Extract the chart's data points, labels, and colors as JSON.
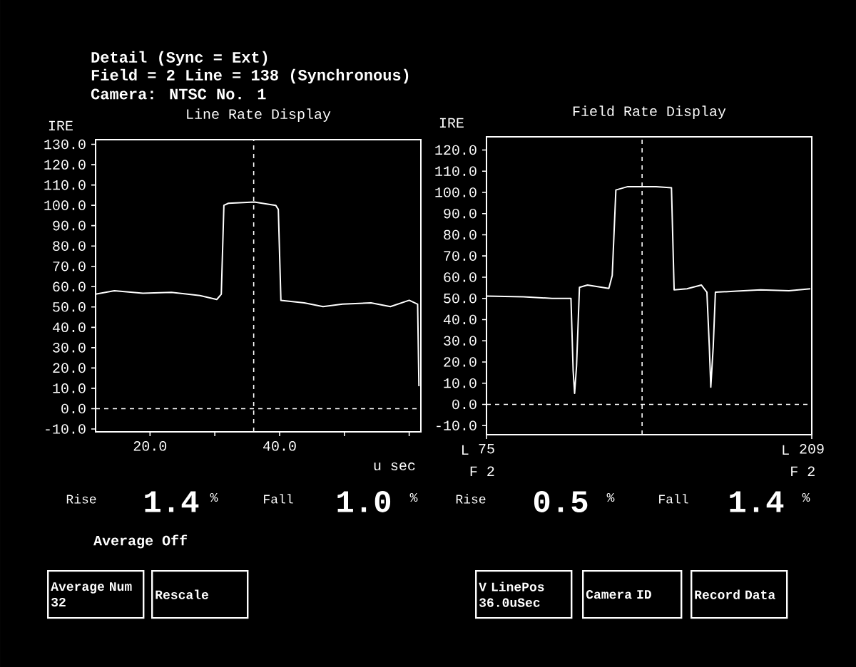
{
  "chart_data": [
    {
      "type": "line",
      "title": "Line Rate Display",
      "ylabel": "IRE",
      "xlabel": "u sec",
      "marker": "none",
      "line_style": "solid",
      "xlim": [
        11.6,
        61.8
      ],
      "ylim": [
        -11.4,
        132.3
      ],
      "xticks": [
        {
          "value": 20,
          "label": "20.0"
        },
        {
          "value": 30,
          "label": null
        },
        {
          "value": 40,
          "label": "40.0"
        },
        {
          "value": 50,
          "label": null
        },
        {
          "value": 60,
          "label": null
        }
      ],
      "yticks": [
        {
          "value": -10,
          "label": "-10.0"
        },
        {
          "value": 0,
          "label": "0.0"
        },
        {
          "value": 10,
          "label": "10.0"
        },
        {
          "value": 20,
          "label": "20.0"
        },
        {
          "value": 30,
          "label": "30.0"
        },
        {
          "value": 40,
          "label": "40.0"
        },
        {
          "value": 50,
          "label": "50.0"
        },
        {
          "value": 60,
          "label": "60.0"
        },
        {
          "value": 70,
          "label": "70.0"
        },
        {
          "value": 80,
          "label": "80.0"
        },
        {
          "value": 90,
          "label": "90.0"
        },
        {
          "value": 100,
          "label": "100.0"
        },
        {
          "value": 110,
          "label": "110.0"
        },
        {
          "value": 120,
          "label": "120.0"
        },
        {
          "value": 130,
          "label": "130.0"
        }
      ],
      "ref_lines": [
        {
          "axis": "y",
          "value": 0,
          "color": "#ffffff",
          "line_style": "dashed"
        },
        {
          "axis": "x",
          "value": 36.0,
          "color": "#ffffff",
          "line_style": "dashed"
        }
      ],
      "series": [
        {
          "color": "#ffffff",
          "x": [
            11.6,
            14.5,
            18.9,
            23.3,
            27.7,
            30.3,
            31.0,
            31.4,
            32.1,
            36.1,
            39.4,
            39.8,
            40.2,
            43.8,
            46.7,
            49.7,
            54.1,
            57.1,
            60.0,
            61.3,
            61.5
          ],
          "values": [
            56.3,
            58,
            56.8,
            57.2,
            55.6,
            53.7,
            56.3,
            100,
            101,
            101.6,
            100,
            98,
            53.3,
            52,
            50.2,
            51.4,
            52,
            50.2,
            53.3,
            51.4,
            11
          ]
        }
      ],
      "annotations": [
        "Detail (Sync = Ext)",
        "Field = 2 Line = 138 (Synchronous)",
        "Camera: NTSC No. 1",
        "Rise",
        "1.4",
        "%",
        "Fall",
        "1.0",
        "%"
      ]
    },
    {
      "type": "line",
      "title": "Field Rate Display",
      "ylabel": "IRE",
      "marker": "none",
      "line_style": "solid",
      "xlim": [
        75,
        209
      ],
      "ylim": [
        -14.3,
        126.2
      ],
      "xticks": [
        75,
        209
      ],
      "yticks": [
        {
          "value": -10,
          "label": "-10.0"
        },
        {
          "value": 0,
          "label": "0.0"
        },
        {
          "value": 10,
          "label": "10.0"
        },
        {
          "value": 20,
          "label": "20.0"
        },
        {
          "value": 30,
          "label": "30.0"
        },
        {
          "value": 40,
          "label": "40.0"
        },
        {
          "value": 50,
          "label": "50.0"
        },
        {
          "value": 60,
          "label": "60.0"
        },
        {
          "value": 70,
          "label": "70.0"
        },
        {
          "value": 80,
          "label": "80.0"
        },
        {
          "value": 90,
          "label": "90.0"
        },
        {
          "value": 100,
          "label": "100.0"
        },
        {
          "value": 110,
          "label": "110.0"
        },
        {
          "value": 120,
          "label": "120.0"
        }
      ],
      "ref_lines": [
        {
          "axis": "y",
          "value": 0,
          "color": "#ffffff",
          "line_style": "dashed"
        },
        {
          "axis": "x",
          "value": 139.1,
          "color": "#ffffff",
          "line_style": "dashed"
        }
      ],
      "series": [
        {
          "color": "#ffffff",
          "x": [
            75,
            90.2,
            102.0,
            109.8,
            110.7,
            111.3,
            112.1,
            113.3,
            116.6,
            125.4,
            126.8,
            128.3,
            133.2,
            144.9,
            151.2,
            152.3,
            157.6,
            163.5,
            165.8,
            166.8,
            167.4,
            168.4,
            169.3,
            178.1,
            187.9,
            199.6,
            208.4
          ],
          "values": [
            51.1,
            50.7,
            50.0,
            50.0,
            15.9,
            5.2,
            18.2,
            55.2,
            56.3,
            54.7,
            60.8,
            101.1,
            102.7,
            102.7,
            102.2,
            54.0,
            54.5,
            56.3,
            52.9,
            27.1,
            8.1,
            27.1,
            52.9,
            53.4,
            54.0,
            53.6,
            54.5
          ]
        }
      ],
      "annotations": [
        "L",
        "L",
        "F 2",
        "F 2",
        "Rise",
        "0.5",
        "%",
        "Fall",
        "1.4",
        "%"
      ]
    },
    {
      "type": "other",
      "annotations": [
        "Average Off",
        "Average Num 32",
        "Rescale",
        "V LinePos 36.0uSec",
        "Camera ID",
        "Record Data"
      ]
    }
  ]
}
